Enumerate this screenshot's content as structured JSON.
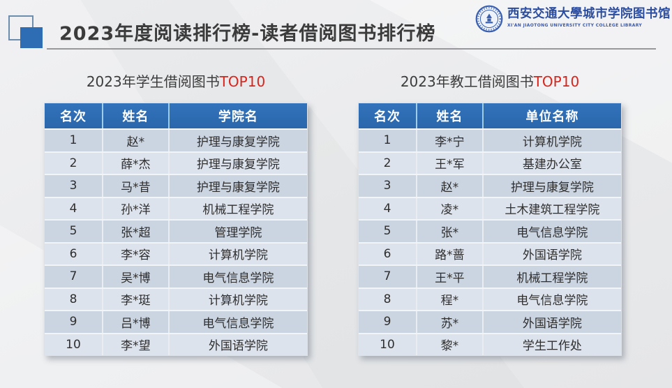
{
  "header": {
    "title": "2023年度阅读排行榜-读者借阅图书排行榜",
    "logo": {
      "emblem_icon": "university-seal",
      "name_cn": "西安交通大學城市学院图书馆",
      "name_en": "XI'AN JIAOTONG UNIVERSITY CITY COLLEGE LIBRARY"
    }
  },
  "student_section": {
    "subtitle": "2023年学生借阅图书",
    "subtitle_highlight": "TOP10",
    "columns": [
      "名次",
      "姓名",
      "学院名"
    ],
    "rows": [
      {
        "rank": "1",
        "name": "赵*",
        "org": "护理与康复学院"
      },
      {
        "rank": "2",
        "name": "薛*杰",
        "org": "护理与康复学院"
      },
      {
        "rank": "3",
        "name": "马*昔",
        "org": "护理与康复学院"
      },
      {
        "rank": "4",
        "name": "孙*洋",
        "org": "机械工程学院"
      },
      {
        "rank": "5",
        "name": "张*超",
        "org": "管理学院"
      },
      {
        "rank": "6",
        "name": "李*容",
        "org": "计算机学院"
      },
      {
        "rank": "7",
        "name": "吴*博",
        "org": "电气信息学院"
      },
      {
        "rank": "8",
        "name": "李*珽",
        "org": "计算机学院"
      },
      {
        "rank": "9",
        "name": "吕*博",
        "org": "电气信息学院"
      },
      {
        "rank": "10",
        "name": "李*望",
        "org": "外国语学院"
      }
    ]
  },
  "staff_section": {
    "subtitle": "2023年教工借阅图书",
    "subtitle_highlight": "TOP10",
    "columns": [
      "名次",
      "姓名",
      "单位名称"
    ],
    "rows": [
      {
        "rank": "1",
        "name": "李*宁",
        "org": "计算机学院"
      },
      {
        "rank": "2",
        "name": "王*军",
        "org": "基建办公室"
      },
      {
        "rank": "3",
        "name": "赵*",
        "org": "护理与康复学院"
      },
      {
        "rank": "4",
        "name": "凌*",
        "org": "土木建筑工程学院"
      },
      {
        "rank": "5",
        "name": "张*",
        "org": "电气信息学院"
      },
      {
        "rank": "6",
        "name": "路*蔷",
        "org": "外国语学院"
      },
      {
        "rank": "7",
        "name": "王*平",
        "org": "机械工程学院"
      },
      {
        "rank": "8",
        "name": "程*",
        "org": "电气信息学院"
      },
      {
        "rank": "9",
        "name": "苏*",
        "org": "外国语学院"
      },
      {
        "rank": "10",
        "name": "黎*",
        "org": "学生工作处"
      }
    ]
  },
  "colors": {
    "accent_blue": "#2e6db4",
    "table_header_blue": "#2b6cb4",
    "row_dark": "#cbd4e1",
    "row_light": "#dde3ec",
    "highlight_red": "#d6251d",
    "logo_blue": "#2b4d9f",
    "title_gray": "#3b3b3b"
  }
}
